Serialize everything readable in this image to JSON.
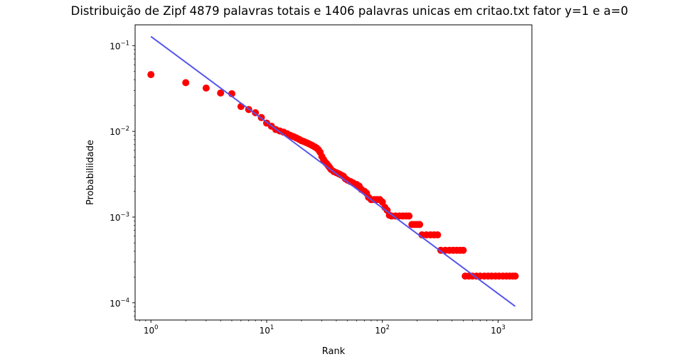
{
  "chart_data": {
    "type": "scatter",
    "title": "Distribuição de Zipf 4879 palavras totais e 1406 palavras unicas em critao.txt fator y=1 e a=0",
    "xlabel": "Rank",
    "ylabel": "Probabiliidade",
    "xscale": "log",
    "yscale": "log",
    "xlim": [
      0.73,
      1960
    ],
    "ylim": [
      6.3e-05,
      0.175
    ],
    "x_ticks": [
      {
        "base": "10",
        "exp": "0",
        "value": 1
      },
      {
        "base": "10",
        "exp": "1",
        "value": 10
      },
      {
        "base": "10",
        "exp": "2",
        "value": 100
      },
      {
        "base": "10",
        "exp": "3",
        "value": 1000
      }
    ],
    "y_ticks": [
      {
        "base": "10",
        "exp": "−4",
        "value": 0.0001
      },
      {
        "base": "10",
        "exp": "−3",
        "value": 0.001
      },
      {
        "base": "10",
        "exp": "−2",
        "value": 0.01
      },
      {
        "base": "10",
        "exp": "−1",
        "value": 0.1
      }
    ],
    "grid": false,
    "series": [
      {
        "kind": "scatter",
        "color": "#ff0000",
        "points": [
          [
            1,
            0.046
          ],
          [
            2,
            0.037
          ],
          [
            3,
            0.032
          ],
          [
            4,
            0.028
          ],
          [
            5,
            0.0275
          ],
          [
            6,
            0.0195
          ],
          [
            7,
            0.018
          ],
          [
            8,
            0.0165
          ],
          [
            9,
            0.0145
          ],
          [
            10,
            0.0125
          ],
          [
            11,
            0.0115
          ],
          [
            12,
            0.0105
          ],
          [
            13,
            0.0101
          ],
          [
            14,
            0.0098
          ],
          [
            15,
            0.0094
          ],
          [
            16,
            0.009
          ],
          [
            17,
            0.0087
          ],
          [
            18,
            0.0084
          ],
          [
            19,
            0.0081
          ],
          [
            20,
            0.0078
          ],
          [
            21,
            0.0076
          ],
          [
            22,
            0.0074
          ],
          [
            23,
            0.0072
          ],
          [
            24,
            0.007
          ],
          [
            25,
            0.0068
          ],
          [
            26,
            0.0066
          ],
          [
            27,
            0.0064
          ],
          [
            28,
            0.0061
          ],
          [
            29,
            0.0057
          ],
          [
            30,
            0.0051
          ],
          [
            31,
            0.0047
          ],
          [
            32,
            0.0044
          ],
          [
            33,
            0.0042
          ],
          [
            34,
            0.004
          ],
          [
            35,
            0.0038
          ],
          [
            36,
            0.0036
          ],
          [
            38,
            0.0034
          ],
          [
            40,
            0.0033
          ],
          [
            42,
            0.0032
          ],
          [
            44,
            0.0031
          ],
          [
            46,
            0.003
          ],
          [
            48,
            0.0028
          ],
          [
            50,
            0.0027
          ],
          [
            53,
            0.0026
          ],
          [
            56,
            0.0025
          ],
          [
            60,
            0.0024
          ],
          [
            63,
            0.0023
          ],
          [
            66,
            0.0021
          ],
          [
            70,
            0.002
          ],
          [
            73,
            0.0019
          ],
          [
            76,
            0.0017
          ],
          [
            80,
            0.0016
          ],
          [
            85,
            0.0016
          ],
          [
            90,
            0.0016
          ],
          [
            95,
            0.0016
          ],
          [
            100,
            0.0015
          ],
          [
            105,
            0.0013
          ],
          [
            110,
            0.0012
          ],
          [
            115,
            0.00105
          ],
          [
            120,
            0.00103
          ],
          [
            130,
            0.00103
          ],
          [
            140,
            0.00103
          ],
          [
            150,
            0.00103
          ],
          [
            160,
            0.00103
          ],
          [
            170,
            0.00103
          ],
          [
            180,
            0.00082
          ],
          [
            190,
            0.00082
          ],
          [
            200,
            0.00082
          ],
          [
            210,
            0.00082
          ],
          [
            220,
            0.00062
          ],
          [
            240,
            0.00062
          ],
          [
            260,
            0.00062
          ],
          [
            280,
            0.00062
          ],
          [
            300,
            0.00062
          ],
          [
            320,
            0.00041
          ],
          [
            350,
            0.00041
          ],
          [
            380,
            0.00041
          ],
          [
            410,
            0.00041
          ],
          [
            440,
            0.00041
          ],
          [
            470,
            0.00041
          ],
          [
            500,
            0.00041
          ],
          [
            520,
            0.000205
          ],
          [
            560,
            0.000205
          ],
          [
            600,
            0.000205
          ],
          [
            650,
            0.000205
          ],
          [
            700,
            0.000205
          ],
          [
            760,
            0.000205
          ],
          [
            820,
            0.000205
          ],
          [
            880,
            0.000205
          ],
          [
            950,
            0.000205
          ],
          [
            1020,
            0.000205
          ],
          [
            1100,
            0.000205
          ],
          [
            1180,
            0.000205
          ],
          [
            1260,
            0.000205
          ],
          [
            1340,
            0.000205
          ],
          [
            1406,
            0.000205
          ]
        ]
      },
      {
        "kind": "line",
        "color": "#5555ee",
        "points": [
          [
            1,
            0.128
          ],
          [
            1406,
            9.1e-05
          ]
        ]
      }
    ]
  }
}
